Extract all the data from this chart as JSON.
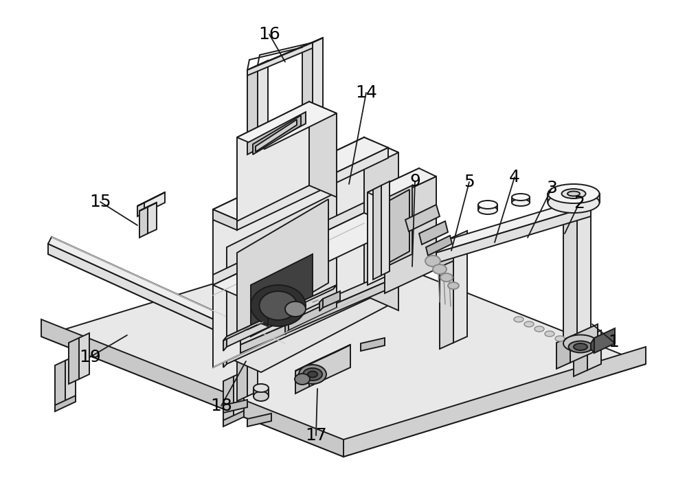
{
  "bg_color": "#ffffff",
  "lc": "#1a1a1a",
  "lw": 1.4,
  "figsize": [
    10.0,
    7.12
  ],
  "dpi": 100,
  "labels": [
    [
      "1",
      893,
      498,
      862,
      472
    ],
    [
      "2",
      843,
      296,
      822,
      340
    ],
    [
      "3",
      803,
      274,
      768,
      346
    ],
    [
      "4",
      749,
      258,
      720,
      353
    ],
    [
      "5",
      683,
      265,
      657,
      365
    ],
    [
      "9",
      604,
      264,
      600,
      388
    ],
    [
      "14",
      533,
      135,
      508,
      268
    ],
    [
      "15",
      146,
      294,
      200,
      328
    ],
    [
      "16",
      392,
      50,
      415,
      90
    ],
    [
      "17",
      460,
      634,
      462,
      566
    ],
    [
      "18",
      322,
      591,
      358,
      526
    ],
    [
      "19",
      131,
      520,
      185,
      488
    ]
  ]
}
